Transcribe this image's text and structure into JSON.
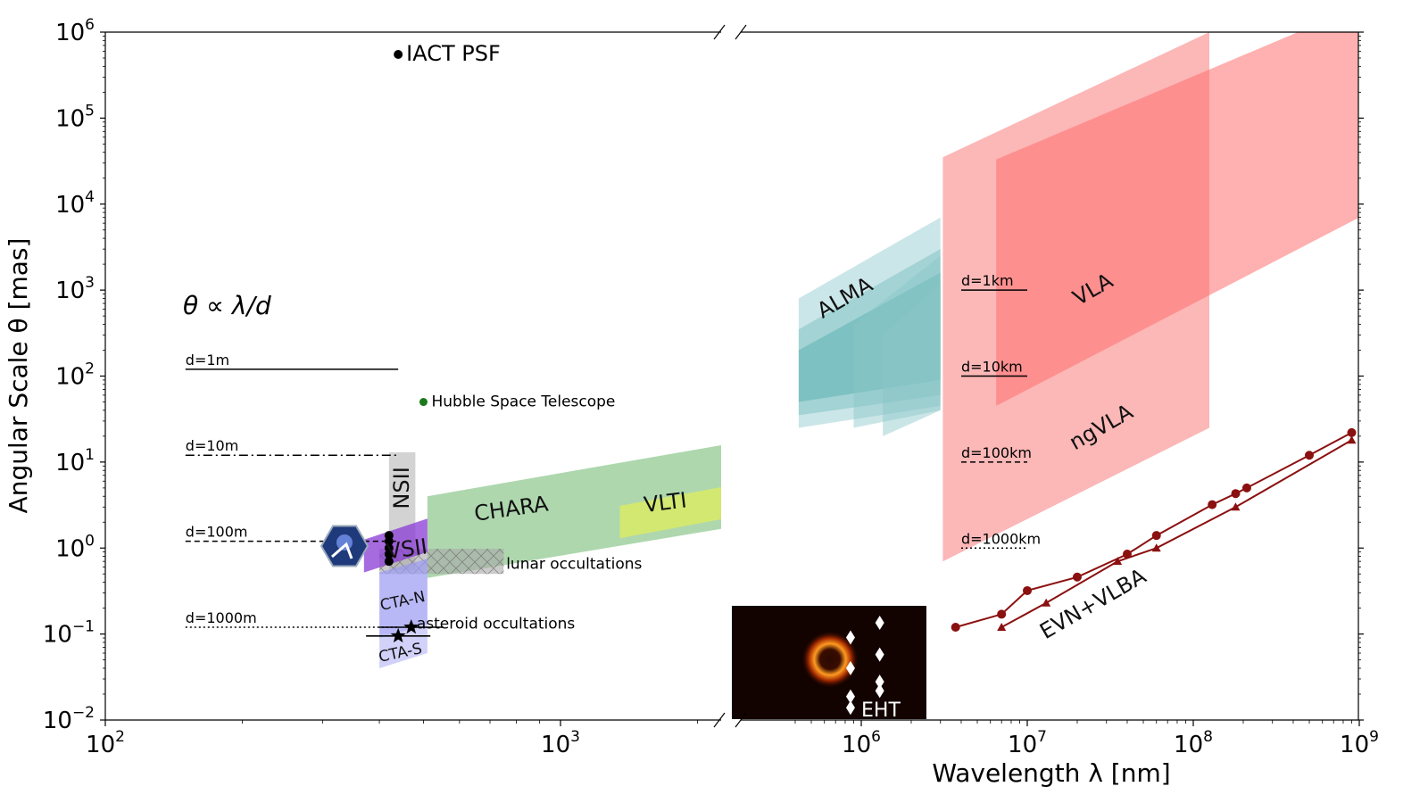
{
  "chart_data": {
    "type": "area",
    "xlabel": "Wavelength $\\lambda$  [nm]",
    "ylabel": "Angular Scale $\\theta$ [mas]",
    "x_scale": "log",
    "y_scale": "log",
    "x_panels": [
      [
        100,
        2500
      ],
      [
        300000,
        1000000000
      ]
    ],
    "ylim": [
      0.01,
      1000000
    ],
    "x_ticks": [
      {
        "value": 100,
        "base": "10",
        "exp": "2"
      },
      {
        "value": 1000,
        "base": "10",
        "exp": "3"
      },
      {
        "value": 1000000,
        "base": "10",
        "exp": "6"
      },
      {
        "value": 10000000,
        "base": "10",
        "exp": "7"
      },
      {
        "value": 100000000,
        "base": "10",
        "exp": "8"
      },
      {
        "value": 1000000000,
        "base": "10",
        "exp": "9"
      }
    ],
    "y_ticks": [
      {
        "value": 1000000,
        "base": "10",
        "exp": "6"
      },
      {
        "value": 100000,
        "base": "10",
        "exp": "5"
      },
      {
        "value": 10000,
        "base": "10",
        "exp": "4"
      },
      {
        "value": 1000,
        "base": "10",
        "exp": "3"
      },
      {
        "value": 100,
        "base": "10",
        "exp": "2"
      },
      {
        "value": 10,
        "base": "10",
        "exp": "1"
      },
      {
        "value": 1,
        "base": "10",
        "exp": "0"
      },
      {
        "value": 0.1,
        "base": "10",
        "exp": "−1"
      },
      {
        "value": 0.01,
        "base": "10",
        "exp": "−2"
      }
    ],
    "formula_label": "θ ∝ λ/d",
    "resolution_lines_left": [
      {
        "label": "d=1m",
        "theta": 120,
        "style": "solid",
        "x_range": [
          150,
          440
        ]
      },
      {
        "label": "d=10m",
        "theta": 12,
        "style": "dashdot",
        "x_range": [
          150,
          440
        ]
      },
      {
        "label": "d=100m",
        "theta": 1.2,
        "style": "dashed",
        "x_range": [
          150,
          440
        ]
      },
      {
        "label": "d=1000m",
        "theta": 0.12,
        "style": "dotted",
        "x_range": [
          150,
          440
        ]
      }
    ],
    "resolution_lines_right": [
      {
        "label": "d=1km",
        "theta": 1000,
        "style": "solid",
        "x_range": [
          4000000,
          10000000
        ]
      },
      {
        "label": "d=10km",
        "theta": 100,
        "style": "solid",
        "x_range": [
          4000000,
          10000000
        ]
      },
      {
        "label": "d=100km",
        "theta": 10,
        "style": "dashed",
        "x_range": [
          4000000,
          10000000
        ]
      },
      {
        "label": "d=1000km",
        "theta": 1,
        "style": "dotted",
        "x_range": [
          4000000,
          10000000
        ]
      }
    ],
    "points": [
      {
        "label": "IACT PSF",
        "x": 440,
        "theta": 550000,
        "color": "#000000"
      },
      {
        "label": "Hubble Space Telescope",
        "x": 500,
        "theta": 50,
        "color": "#1a7a1a"
      }
    ],
    "regions": [
      {
        "label": "CHARA",
        "color": "#8cc68c",
        "opacity": 0.7,
        "polygon": [
          [
            510,
            4
          ],
          [
            2300,
            16
          ],
          [
            2300,
            1.7
          ],
          [
            510,
            0.45
          ]
        ],
        "label_at": [
          780,
          2.8
        ],
        "label_angle": -8
      },
      {
        "label": "VLTI",
        "color": "#d6ea6a",
        "opacity": 0.9,
        "polygon": [
          [
            1350,
            3.1
          ],
          [
            2300,
            5.2
          ],
          [
            2300,
            2.2
          ],
          [
            1350,
            1.3
          ]
        ],
        "label_at": [
          1700,
          3.3
        ],
        "label_angle": -7
      },
      {
        "label": "NSII",
        "color": "#c4c4c4",
        "opacity": 0.75,
        "polygon": [
          [
            420,
            13
          ],
          [
            480,
            13
          ],
          [
            480,
            0.55
          ],
          [
            420,
            0.55
          ]
        ],
        "label_at": [
          450,
          5
        ],
        "label_angle": -90
      },
      {
        "label": "lunar occultations",
        "color": "#a8a8a8",
        "opacity": 0.6,
        "polygon": [
          [
            400,
            0.98
          ],
          [
            750,
            0.98
          ],
          [
            750,
            0.5
          ],
          [
            400,
            0.5
          ]
        ],
        "label_at": [
          760,
          0.65
        ],
        "label_angle": 0
      },
      {
        "label": "VSII",
        "color": "#8a3ad6",
        "opacity": 0.75,
        "polygon": [
          [
            370,
            1.25
          ],
          [
            510,
            2.2
          ],
          [
            510,
            0.9
          ],
          [
            370,
            0.52
          ]
        ],
        "label_at": [
          460,
          0.95
        ],
        "label_angle": -8
      },
      {
        "label": "CTA-N",
        "color": "#9a9af2",
        "opacity": 0.7,
        "polygon": [
          [
            400,
            0.52
          ],
          [
            510,
            0.75
          ],
          [
            510,
            0.13
          ],
          [
            400,
            0.09
          ]
        ],
        "label_at": [
          450,
          0.24
        ],
        "label_angle": -12
      },
      {
        "label": "CTA-S",
        "color": "#b8b8f6",
        "opacity": 0.65,
        "polygon": [
          [
            400,
            0.1
          ],
          [
            510,
            0.13
          ],
          [
            510,
            0.06
          ],
          [
            400,
            0.04
          ]
        ],
        "label_at": [
          445,
          0.06
        ],
        "label_angle": -12
      },
      {
        "label": "ALMA",
        "color": "#a8d6d8",
        "opacity": 0.6,
        "polygon": [
          [
            420000,
            800
          ],
          [
            3000000,
            7000
          ],
          [
            3000000,
            45
          ],
          [
            420000,
            25
          ]
        ],
        "label_at": [
          800000,
          800
        ],
        "label_angle": -30
      },
      {
        "label": "",
        "color": "#5ab0b0",
        "opacity": 0.35,
        "polygon": [
          [
            420000,
            350
          ],
          [
            3000000,
            3000
          ],
          [
            3000000,
            60
          ],
          [
            420000,
            35
          ]
        ],
        "label_at": null,
        "label_angle": 0
      },
      {
        "label": "",
        "color": "#3aa0a0",
        "opacity": 0.35,
        "polygon": [
          [
            420000,
            200
          ],
          [
            3000000,
            1600
          ],
          [
            3000000,
            90
          ],
          [
            420000,
            50
          ]
        ],
        "label_at": null,
        "label_angle": 0
      },
      {
        "label": "",
        "color": "#8ac6c8",
        "opacity": 0.45,
        "polygon": [
          [
            900000,
            400
          ],
          [
            3000000,
            2500
          ],
          [
            3000000,
            40
          ],
          [
            900000,
            25
          ]
        ],
        "label_at": null,
        "label_angle": 0
      },
      {
        "label": "",
        "color": "#8ac6c8",
        "opacity": 0.45,
        "polygon": [
          [
            1350000,
            300
          ],
          [
            3000000,
            1200
          ],
          [
            3000000,
            40
          ],
          [
            1350000,
            20
          ]
        ],
        "label_at": null,
        "label_angle": 0
      },
      {
        "label": "ngVLA",
        "color": "#fbaaaa",
        "opacity": 0.85,
        "polygon": [
          [
            3100000,
            35000
          ],
          [
            125000000,
            1000000
          ],
          [
            125000000,
            25
          ],
          [
            3100000,
            0.7
          ]
        ],
        "label_at": [
          28000000,
          25
        ],
        "label_angle": -30
      },
      {
        "label": "VLA",
        "color": "#ff7070",
        "opacity": 0.55,
        "polygon": [
          [
            6500000,
            33000
          ],
          [
            1000000000,
            2000000
          ],
          [
            1000000000,
            7000
          ],
          [
            6500000,
            45
          ]
        ],
        "label_at": [
          25000000,
          1000
        ],
        "label_angle": -30
      },
      {
        "label": "EVN+VLBA",
        "color": "#ffffff",
        "opacity": 0,
        "polygon": [],
        "label_at": [
          25000000,
          0.22
        ],
        "label_angle": -30
      }
    ],
    "series": [
      {
        "name": "",
        "marker": "circle",
        "color": "#8b1010",
        "x": [
          3700000,
          7000000,
          10000000,
          20000000,
          40000000,
          60000000,
          130000000,
          180000000,
          210000000,
          500000000,
          900000000
        ],
        "values": [
          0.12,
          0.17,
          0.32,
          0.46,
          0.85,
          1.4,
          3.2,
          4.3,
          5.0,
          12,
          22
        ]
      },
      {
        "name": "",
        "marker": "triangle",
        "color": "#8b1010",
        "x": [
          7000000,
          13000000,
          35000000,
          60000000,
          180000000,
          900000000
        ],
        "values": [
          0.12,
          0.23,
          0.7,
          1.0,
          3.0,
          18
        ]
      }
    ],
    "asteroid_occultations": {
      "label": "asteroid occultations",
      "stars": [
        {
          "x": 470,
          "theta": 0.12
        },
        {
          "x": 440,
          "theta": 0.095
        }
      ]
    },
    "vsii_points": {
      "x": 420,
      "theta": [
        1.4,
        1.2,
        1.0,
        0.85,
        0.7
      ]
    },
    "eht": {
      "label": "EHT",
      "diamond_offsets": [
        [
          0.61,
          0.28
        ],
        [
          0.61,
          0.55
        ],
        [
          0.61,
          0.8
        ],
        [
          0.61,
          0.9
        ],
        [
          0.76,
          0.15
        ],
        [
          0.76,
          0.43
        ],
        [
          0.76,
          0.67
        ],
        [
          0.76,
          0.75
        ]
      ]
    }
  }
}
